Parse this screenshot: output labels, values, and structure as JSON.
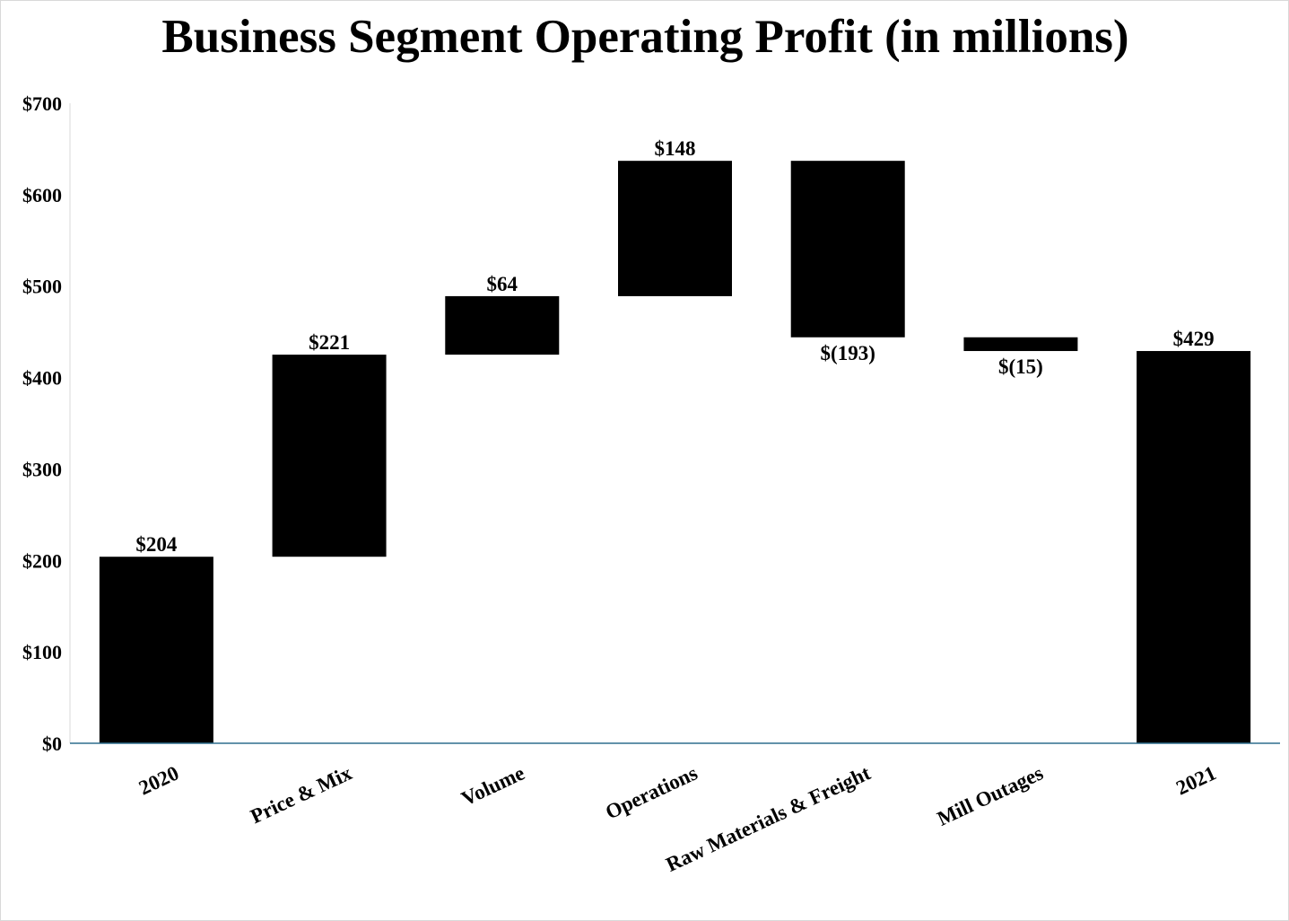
{
  "chart_data": {
    "type": "bar",
    "subtype": "waterfall",
    "title": "Business Segment Operating Profit (in millions)",
    "categories": [
      "2020",
      "Price & Mix",
      "Volume",
      "Operations",
      "Raw Materials & Freight",
      "Mill Outages",
      "2021"
    ],
    "values": [
      204,
      221,
      64,
      148,
      -193,
      -15,
      429
    ],
    "kinds": [
      "total",
      "delta",
      "delta",
      "delta",
      "delta",
      "delta",
      "total"
    ],
    "data_labels": [
      "$204",
      "$221",
      "$64",
      "$148",
      "$(193)",
      "$(15)",
      "$429"
    ],
    "ylim": [
      0,
      700
    ],
    "yticks": [
      0,
      100,
      200,
      300,
      400,
      500,
      600,
      700
    ],
    "ytick_labels": [
      "$0",
      "$100",
      "$200",
      "$300",
      "$400",
      "$500",
      "$600",
      "$700"
    ],
    "xlabel": "",
    "ylabel": "",
    "grid": false,
    "bar_color": "#000000",
    "axis_color": "#2e6f8e"
  }
}
